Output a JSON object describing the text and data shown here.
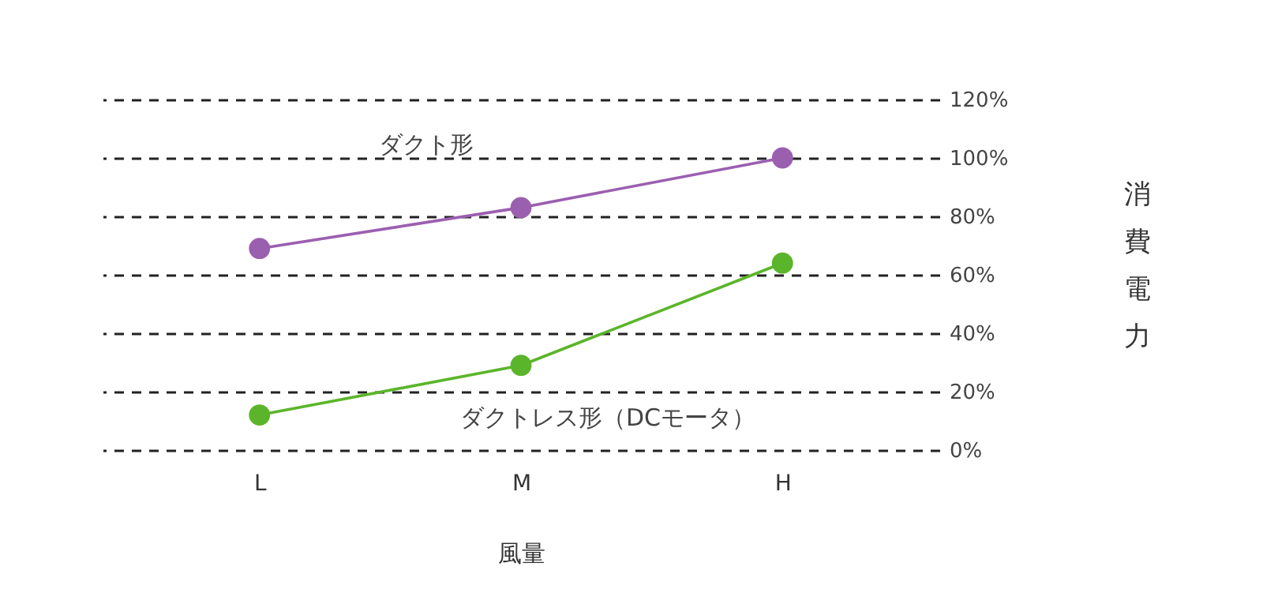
{
  "chart_data": {
    "type": "line",
    "xlabel": "風量",
    "ylabel": "消費電力",
    "categories": [
      "L",
      "M",
      "H"
    ],
    "series": [
      {
        "name": "ダクト形",
        "color": "#9b5fb0",
        "values": [
          69,
          83,
          100
        ]
      },
      {
        "name": "ダクトレス形（DCモータ）",
        "color": "#5bb52a",
        "values": [
          12,
          29,
          64
        ]
      }
    ],
    "ylim": [
      0,
      120
    ],
    "yticks": [
      {
        "value": 0,
        "label": "0%"
      },
      {
        "value": 20,
        "label": "20%"
      },
      {
        "value": 40,
        "label": "40%"
      },
      {
        "value": 60,
        "label": "60%"
      },
      {
        "value": 80,
        "label": "80%"
      },
      {
        "value": 100,
        "label": "100%"
      },
      {
        "value": 120,
        "label": "120%"
      }
    ],
    "grid": "y",
    "legend": false,
    "marker": "circle",
    "line_style": "solid"
  }
}
